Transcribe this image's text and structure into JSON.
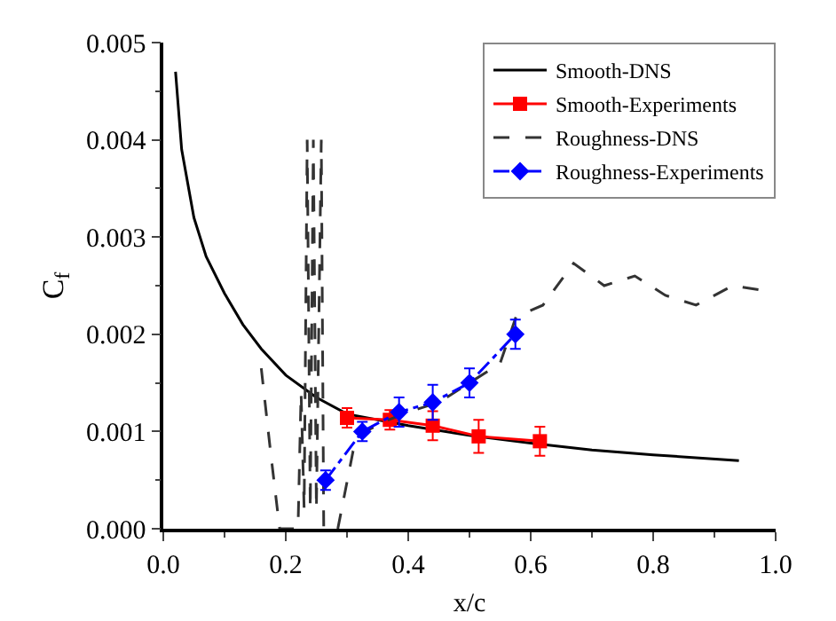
{
  "chart_data": {
    "type": "line",
    "xlabel": "x/c",
    "ylabel": "C$_{f}$",
    "xlim": [
      0,
      1
    ],
    "ylim": [
      0,
      0.005
    ],
    "xticks": [
      {
        "value": 0,
        "label": "0.0"
      },
      0.2,
      0.4,
      0.6,
      0.8,
      {
        "value": 1,
        "label": "1.0"
      }
    ],
    "yticks": [
      {
        "value": 0,
        "label": "0.000"
      },
      0.001,
      0.002,
      0.003,
      0.004,
      0.005
    ],
    "grid": false,
    "legend": "top right",
    "series": [
      {
        "name": "Smooth-DNS",
        "color": "#000000",
        "line_style": "solid",
        "marker": "none",
        "x": [
          0.02,
          0.03,
          0.05,
          0.07,
          0.1,
          0.13,
          0.16,
          0.2,
          0.25,
          0.3,
          0.35,
          0.4,
          0.5,
          0.6,
          0.7,
          0.8,
          0.94
        ],
        "values": [
          0.0047,
          0.0039,
          0.0032,
          0.0028,
          0.00242,
          0.0021,
          0.00185,
          0.00158,
          0.00135,
          0.00118,
          0.00112,
          0.00106,
          0.00096,
          0.00088,
          0.00081,
          0.00076,
          0.0007
        ]
      },
      {
        "name": "Smooth-Experiments",
        "color": "#ff0000",
        "line_style": "solid",
        "marker": "square",
        "x": [
          0.3,
          0.37,
          0.44,
          0.515,
          0.615
        ],
        "values": [
          0.00114,
          0.00112,
          0.00106,
          0.00095,
          0.0009
        ],
        "errors": [
          0.0001,
          0.0001,
          0.00015,
          0.00017,
          0.00015
        ]
      },
      {
        "name": "Roughness-DNS",
        "color": "#333333",
        "line_style": "dashed",
        "marker": "none",
        "x": [
          0.16,
          0.175,
          0.19,
          0.22,
          0.225,
          0.23,
          0.235,
          0.24,
          0.245,
          0.25,
          0.258,
          0.262,
          0.285,
          0.31,
          0.33,
          0.36,
          0.4,
          0.45,
          0.5,
          0.55,
          0.576,
          0.62,
          0.67,
          0.72,
          0.77,
          0.82,
          0.87,
          0.93,
          0.98
        ],
        "values": [
          0.00165,
          0.0008,
          0,
          0,
          0.0014,
          0.0002,
          0.004,
          0.0002,
          0.004,
          0.0002,
          0.004,
          0,
          0,
          0.0008,
          0.001,
          0.0011,
          0.0012,
          0.0013,
          0.0015,
          0.0017,
          0.00218,
          0.0023,
          0.00273,
          0.0025,
          0.0026,
          0.0024,
          0.0023,
          0.0025,
          0.00245
        ]
      },
      {
        "name": "Roughness-Experiments",
        "color": "#0000ff",
        "line_style": "dotted",
        "marker": "diamond",
        "x": [
          0.265,
          0.325,
          0.385,
          0.44,
          0.5,
          0.575
        ],
        "values": [
          0.0005,
          0.001,
          0.0012,
          0.0013,
          0.0015,
          0.002
        ],
        "errors": [
          0.0001,
          0.0001,
          0.00015,
          0.00018,
          0.00015,
          0.00015
        ]
      }
    ]
  }
}
